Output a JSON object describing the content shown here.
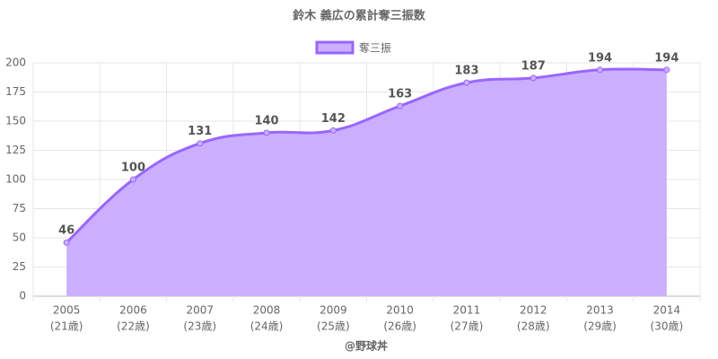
{
  "chart_data": {
    "type": "area",
    "title": "鈴木 義広の累計奪三振数",
    "x_label": "@野球丼",
    "categories": [
      [
        "2005",
        "(21歳)"
      ],
      [
        "2006",
        "(22歳)"
      ],
      [
        "2007",
        "(23歳)"
      ],
      [
        "2008",
        "(24歳)"
      ],
      [
        "2009",
        "(25歳)"
      ],
      [
        "2010",
        "(26歳)"
      ],
      [
        "2011",
        "(27歳)"
      ],
      [
        "2012",
        "(28歳)"
      ],
      [
        "2013",
        "(29歳)"
      ],
      [
        "2014",
        "(30歳)"
      ]
    ],
    "series": [
      {
        "name": "奪三振",
        "color": "#9966ff",
        "fill": "#caafff",
        "values": [
          46,
          100,
          131,
          140,
          142,
          163,
          183,
          187,
          194,
          194
        ]
      }
    ],
    "ylim": [
      0,
      200
    ],
    "yticks": [
      0,
      25,
      50,
      75,
      100,
      125,
      150,
      175,
      200
    ],
    "grid": true,
    "legend": "top"
  }
}
